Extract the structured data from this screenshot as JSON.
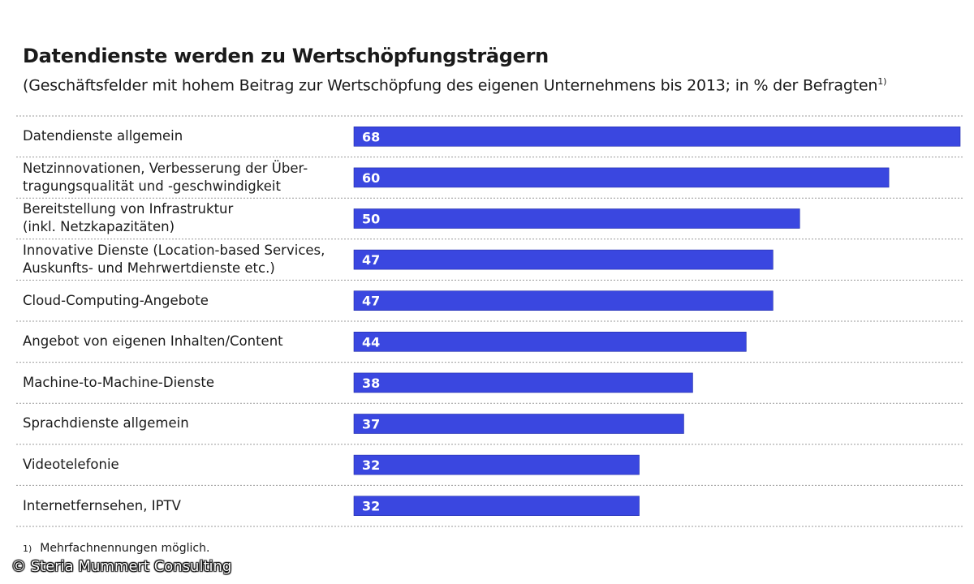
{
  "chart_data": {
    "type": "bar",
    "orientation": "horizontal",
    "title": "Datendienste werden zu Wertschöpfungsträgern",
    "subtitle": "(Geschäftsfelder mit hohem Beitrag zur Wertschöpfung des eigenen Unternehmens bis 2013; in % der Befragten",
    "subtitle_footnote_mark": "1)",
    "categories": [
      [
        "Datendienste allgemein"
      ],
      [
        "Netzinnovationen, Verbesserung der Über-",
        "tragungsqualität und -geschwindigkeit"
      ],
      [
        "Bereitstellung von Infrastruktur",
        "(inkl. Netzkapazitäten)"
      ],
      [
        "Innovative Dienste (Location-based Services,",
        "Auskunfts- und Mehrwertdienste etc.)"
      ],
      [
        "Cloud-Computing-Angebote"
      ],
      [
        "Angebot von eigenen Inhalten/Content"
      ],
      [
        "Machine-to-Machine-Dienste"
      ],
      [
        "Sprachdienste allgemein"
      ],
      [
        "Videotelefonie"
      ],
      [
        "Internetfernsehen, IPTV"
      ]
    ],
    "values": [
      68,
      60,
      50,
      47,
      47,
      44,
      38,
      37,
      32,
      32
    ],
    "xlim": [
      0,
      68
    ],
    "unit": "%",
    "bar_color": "#3a47e0",
    "footnote_mark": "1)",
    "footnote": "Mehrfachnennungen möglich."
  },
  "copyright": "© Steria Mummert Consulting"
}
